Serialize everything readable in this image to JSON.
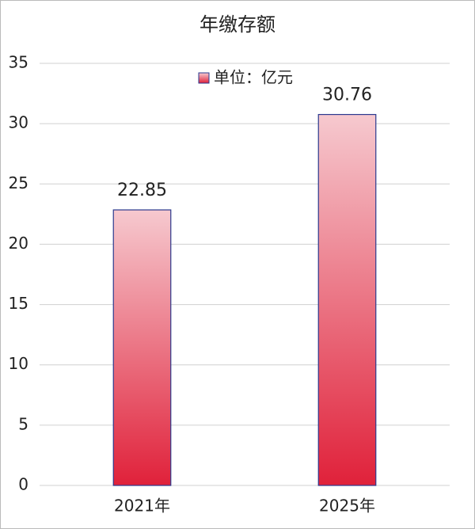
{
  "chart_data": {
    "type": "bar",
    "title": "年缴存额",
    "categories": [
      "2021年",
      "2025年"
    ],
    "series": [
      {
        "name": "单位：亿元",
        "color": "#e0213a",
        "values": [
          22.85,
          30.76
        ]
      }
    ],
    "ylim": [
      0,
      35
    ],
    "yticks": [
      0,
      5,
      10,
      15,
      20,
      25,
      30,
      35
    ],
    "grid": true
  }
}
